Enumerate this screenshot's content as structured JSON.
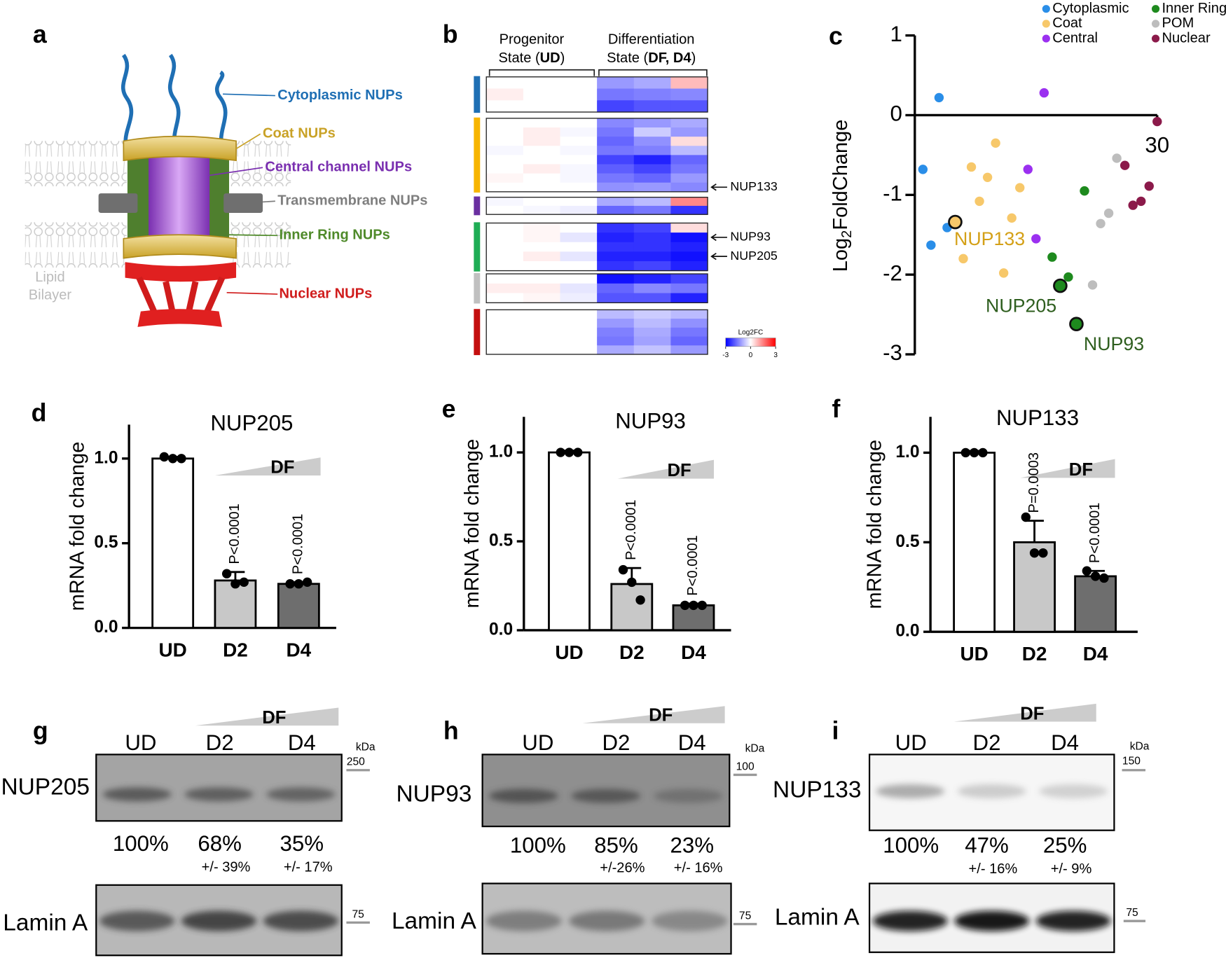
{
  "panel_a": {
    "letter": "a",
    "labels": [
      {
        "text": "Cytoplasmic NUPs",
        "color": "#1f6fb4"
      },
      {
        "text": "Coat NUPs",
        "color": "#c9a227"
      },
      {
        "text": "Central channel NUPs",
        "color": "#7a2fb0"
      },
      {
        "text": "Transmembrane NUPs",
        "color": "#7f7f7f"
      },
      {
        "text": "Inner Ring NUPs",
        "color": "#4f8a2a"
      },
      {
        "text": "Nuclear NUPs",
        "color": "#d01c1c"
      }
    ],
    "bilayer_label": [
      "Lipid",
      "Bilayer"
    ]
  },
  "chart_data": [
    {
      "type": "heatmap",
      "panel": "b",
      "headers": [
        {
          "line1": "Progenitor",
          "line2": [
            "State (",
            "UD",
            ")"
          ]
        },
        {
          "line1": "Differentiation",
          "line2": [
            "State (",
            "DF, D4",
            ")"
          ]
        }
      ],
      "groups": [
        {
          "color": "#1f6fb4",
          "rows": [
            [
              0,
              0,
              0,
              -1.2,
              -1.0,
              0.8
            ],
            [
              0.2,
              0,
              0,
              -1.6,
              -1.5,
              -1.4
            ],
            [
              0,
              0,
              0,
              -2.2,
              -2.0,
              -2.0
            ]
          ]
        },
        {
          "color": "#f7b500",
          "rows": [
            [
              0,
              0,
              0,
              -1.4,
              -1.2,
              -1.0
            ],
            [
              0,
              0.2,
              -0.1,
              -1.6,
              -0.6,
              -1.2
            ],
            [
              0,
              0.2,
              0,
              -1.8,
              -1.3,
              0.4
            ],
            [
              -0.1,
              0,
              -0.1,
              -1.6,
              -1.5,
              -0.8
            ],
            [
              0,
              0,
              0,
              -2.2,
              -2.6,
              -1.8
            ],
            [
              0,
              0.2,
              -0.1,
              -1.9,
              -2.2,
              -1.6
            ],
            [
              0.1,
              0,
              -0.1,
              -1.6,
              -1.8,
              -1.2
            ],
            [
              0,
              0,
              0,
              -1.3,
              -1.2,
              -1.4
            ]
          ],
          "row_labels": [
            null,
            null,
            null,
            null,
            null,
            null,
            null,
            "NUP133"
          ]
        },
        {
          "color": "#6a2fa0",
          "rows": [
            [
              -0.1,
              0,
              0,
              -1.0,
              -0.8,
              1.4
            ],
            [
              0,
              -0.1,
              -0.2,
              -1.8,
              -1.6,
              -2.4
            ]
          ]
        },
        {
          "color": "#1fad55",
          "rows": [
            [
              0,
              0.1,
              0,
              -2.4,
              -2.2,
              0.4
            ],
            [
              0,
              0.1,
              -0.3,
              -2.6,
              -2.4,
              -2.8
            ],
            [
              0,
              0,
              0,
              -2.4,
              -2.4,
              -2.6
            ],
            [
              0,
              0.2,
              -0.3,
              -2.6,
              -2.6,
              -2.8
            ],
            [
              0,
              0,
              0,
              -2.4,
              -2.2,
              -2.6
            ]
          ],
          "row_labels": [
            null,
            "NUP93",
            null,
            "NUP205",
            null
          ]
        },
        {
          "color": "#c0c0c0",
          "rows": [
            [
              0,
              0,
              0,
              -2.8,
              -2.6,
              -2.2
            ],
            [
              0.2,
              0.2,
              -0.3,
              -1.8,
              -1.4,
              -1.6
            ],
            [
              0,
              0.1,
              -0.2,
              -2.0,
              -2.0,
              -2.6
            ]
          ]
        },
        {
          "color": "#c40f0f",
          "rows": [
            [
              0,
              0,
              0,
              -0.8,
              -0.6,
              -0.8
            ],
            [
              0,
              0,
              0,
              -1.2,
              -0.8,
              -1.3
            ],
            [
              0,
              0,
              0,
              -1.5,
              -1.0,
              -1.6
            ],
            [
              0,
              0,
              0,
              -1.6,
              -1.1,
              -1.8
            ],
            [
              0,
              0,
              0,
              -1.0,
              -0.7,
              -1.2
            ]
          ]
        }
      ],
      "legend_title": "Log2FC",
      "zlim": [
        -3,
        3
      ],
      "zticks": [
        -3,
        0,
        3
      ],
      "colors": [
        "#0000ff",
        "#ffffff",
        "#ff0000"
      ]
    },
    {
      "type": "scatter",
      "panel": "c",
      "ylabel": [
        "Log",
        "2",
        "FoldChange"
      ],
      "xlim": [
        0,
        30
      ],
      "xticks": [
        30
      ],
      "ylim": [
        -3,
        1
      ],
      "yticks": [
        -3,
        -2,
        -1,
        0,
        1
      ],
      "legend": "top-right",
      "series": [
        {
          "name": "Cytoplasmic",
          "color": "#2a8ee8",
          "x": [
            1,
            2,
            3,
            4
          ],
          "values": [
            -0.68,
            -1.63,
            0.22,
            -1.41
          ]
        },
        {
          "name": "Coat",
          "color": "#f7c86a",
          "x": [
            5,
            6,
            7,
            8,
            9,
            10,
            11,
            12,
            13
          ],
          "values": [
            -1.34,
            -1.8,
            -0.65,
            -1.08,
            -0.78,
            -0.35,
            -1.98,
            -1.29,
            -0.91
          ],
          "point_labels": [
            "NUP133",
            null,
            null,
            null,
            null,
            null,
            null,
            null,
            null
          ],
          "label_color": "#d4a017"
        },
        {
          "name": "Central",
          "color": "#9b30f0",
          "x": [
            14,
            15,
            16
          ],
          "values": [
            -0.68,
            -1.55,
            0.28
          ]
        },
        {
          "name": "Inner Ring",
          "color": "#1e8a1e",
          "x": [
            17,
            18,
            19,
            20,
            21
          ],
          "values": [
            -1.78,
            -2.14,
            -2.03,
            -2.62,
            -0.95
          ],
          "point_labels": [
            null,
            "NUP205",
            null,
            "NUP93",
            null
          ],
          "label_color": "#2e5e1e"
        },
        {
          "name": "POM",
          "color": "#bdbdbd",
          "x": [
            22,
            23,
            24,
            25
          ],
          "values": [
            -2.13,
            -1.36,
            -1.23,
            -0.54
          ]
        },
        {
          "name": "Nuclear",
          "color": "#8b1a4a",
          "x": [
            26,
            27,
            28,
            29,
            30
          ],
          "values": [
            -0.63,
            -1.13,
            -1.08,
            -0.89,
            -0.08
          ]
        }
      ]
    },
    {
      "type": "bar",
      "panel": "d",
      "title": "NUP205",
      "ylabel": "mRNA fold change",
      "categories": [
        "UD",
        "D2",
        "D4"
      ],
      "values": [
        1.0,
        0.28,
        0.26
      ],
      "errors": [
        0.01,
        0.05,
        0.01
      ],
      "points": [
        [
          1.01,
          1.0,
          1.0
        ],
        [
          0.32,
          0.26,
          0.27
        ],
        [
          0.26,
          0.26,
          0.27
        ]
      ],
      "colors": [
        "#ffffff",
        "#c8c8c8",
        "#6e6e6e"
      ],
      "p_labels": [
        null,
        "P<0.0001",
        "P<0.0001"
      ],
      "ramp_label": "DF",
      "ylim": [
        0,
        1.2
      ],
      "yticks": [
        {
          "value": 0,
          "label": "0.0"
        },
        {
          "value": 0.5,
          "label": "0.5"
        },
        {
          "value": 1,
          "label": "1.0"
        }
      ]
    },
    {
      "type": "bar",
      "panel": "e",
      "title": "NUP93",
      "ylabel": "mRNA fold change",
      "categories": [
        "UD",
        "D2",
        "D4"
      ],
      "values": [
        1.0,
        0.26,
        0.14
      ],
      "errors": [
        0.01,
        0.09,
        0.01
      ],
      "points": [
        [
          1.0,
          1.0,
          1.0
        ],
        [
          0.34,
          0.27,
          0.17
        ],
        [
          0.14,
          0.14,
          0.14
        ]
      ],
      "colors": [
        "#ffffff",
        "#c8c8c8",
        "#6e6e6e"
      ],
      "p_labels": [
        null,
        "P<0.0001",
        "P<0.0001"
      ],
      "ramp_label": "DF",
      "ylim": [
        0,
        1.2
      ],
      "yticks": [
        {
          "value": 0,
          "label": "0.0"
        },
        {
          "value": 0.5,
          "label": "0.5"
        },
        {
          "value": 1,
          "label": "1.0"
        }
      ]
    },
    {
      "type": "bar",
      "panel": "f",
      "title": "NUP133",
      "ylabel": "mRNA fold change",
      "categories": [
        "UD",
        "D2",
        "D4"
      ],
      "values": [
        1.0,
        0.5,
        0.31
      ],
      "errors": [
        0.01,
        0.12,
        0.03
      ],
      "points": [
        [
          1.0,
          1.0,
          1.0
        ],
        [
          0.64,
          0.44,
          0.44
        ],
        [
          0.34,
          0.31,
          0.3
        ]
      ],
      "colors": [
        "#ffffff",
        "#c8c8c8",
        "#6e6e6e"
      ],
      "p_labels": [
        null,
        "P=0.0003",
        "P<0.0001"
      ],
      "ramp_label": "DF",
      "ylim": [
        0,
        1.2
      ],
      "yticks": [
        {
          "value": 0,
          "label": "0.0"
        },
        {
          "value": 0.5,
          "label": "0.5"
        },
        {
          "value": 1,
          "label": "1.0"
        }
      ]
    }
  ],
  "blots": [
    {
      "letter": "g",
      "ramp_label": "DF",
      "lanes": [
        "UD",
        "D2",
        "D4"
      ],
      "kda": "kDa",
      "target": "NUP205",
      "target_marker": "250",
      "percents": [
        "100%",
        "68%",
        "35%"
      ],
      "sd": [
        null,
        "+/- 39%",
        "+/- 17%"
      ],
      "loading": "Lamin A",
      "loading_marker": "75"
    },
    {
      "letter": "h",
      "ramp_label": "DF",
      "lanes": [
        "UD",
        "D2",
        "D4"
      ],
      "kda": "kDa",
      "target": "NUP93",
      "target_marker": "100",
      "percents": [
        "100%",
        "85%",
        "23%"
      ],
      "sd": [
        null,
        "+/-26%",
        "+/- 16%"
      ],
      "loading": "Lamin A",
      "loading_marker": "75"
    },
    {
      "letter": "i",
      "ramp_label": "DF",
      "lanes": [
        "UD",
        "D2",
        "D4"
      ],
      "kda": "kDa",
      "target": "NUP133",
      "target_marker": "150",
      "percents": [
        "100%",
        "47%",
        "25%"
      ],
      "sd": [
        null,
        "+/- 16%",
        "+/- 9%"
      ],
      "loading": "Lamin A",
      "loading_marker": "75"
    }
  ]
}
